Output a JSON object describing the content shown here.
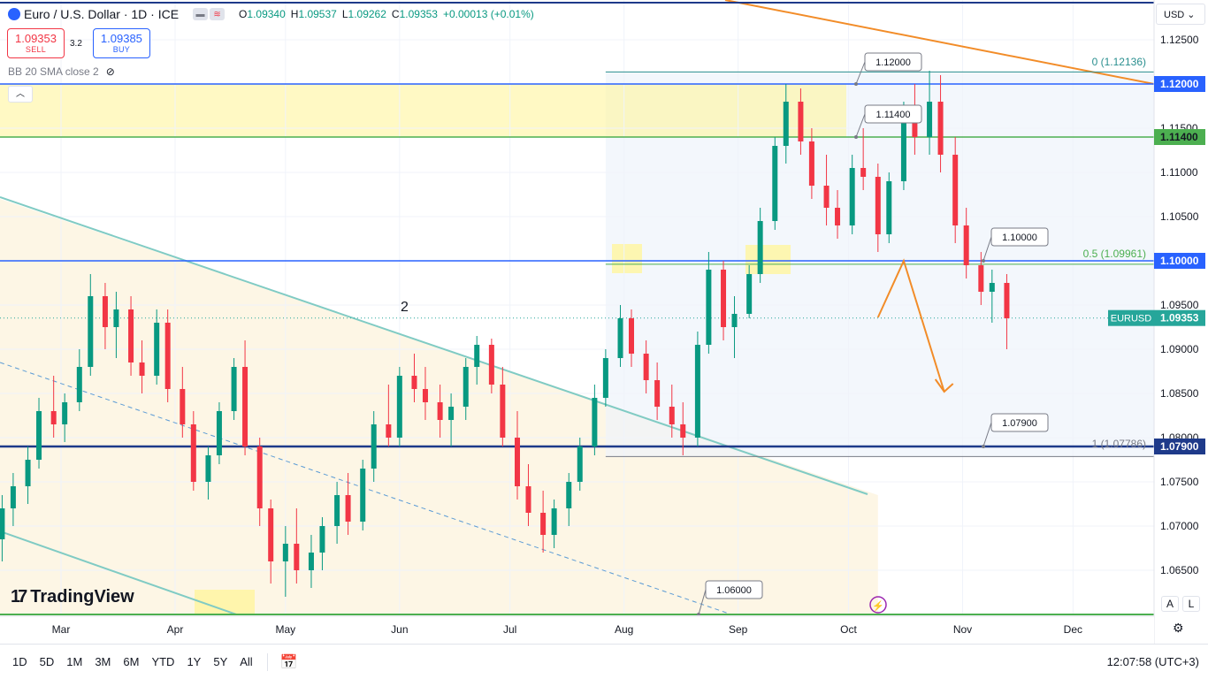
{
  "header": {
    "title": "Euro / U.S. Dollar · 1D · ICE",
    "ohlc": {
      "o_label": "O",
      "o": "1.09340",
      "h_label": "H",
      "h": "1.09537",
      "l_label": "L",
      "l": "1.09262",
      "c_label": "C",
      "c": "1.09353",
      "change": "+0.00013 (+0.01%)"
    }
  },
  "trade": {
    "sell_price": "1.09353",
    "sell_label": "SELL",
    "spread": "3.2",
    "buy_price": "1.09385",
    "buy_label": "BUY"
  },
  "indicator": {
    "label": "BB 20 SMA close 2"
  },
  "currency": "USD",
  "logo": {
    "mark": "17",
    "text": "TradingView"
  },
  "scale_buttons": {
    "auto": "A",
    "log": "L"
  },
  "bottom": {
    "ranges": [
      "1D",
      "5D",
      "1M",
      "3M",
      "6M",
      "YTD",
      "1Y",
      "5Y",
      "All"
    ],
    "clock": "12:07:58 (UTC+3)"
  },
  "chart_data": {
    "type": "candlestick",
    "symbol": "EURUSD",
    "last_price": 1.09353,
    "y_ticks": [
      "1.12500",
      "1.12000",
      "1.11500",
      "1.11400",
      "1.11000",
      "1.10500",
      "1.10000",
      "1.09500",
      "1.09353",
      "1.09000",
      "1.08500",
      "1.08000",
      "1.07900",
      "1.07500",
      "1.07000",
      "1.06500"
    ],
    "x_ticks": [
      "Mar",
      "Apr",
      "May",
      "Jun",
      "Jul",
      "Aug",
      "Sep",
      "Oct",
      "Nov",
      "Dec"
    ],
    "horizontal_levels": [
      {
        "value": 1.12,
        "color": "#2962ff",
        "label": "1.12000"
      },
      {
        "value": 1.114,
        "color": "#4caf50",
        "label": "1.11400"
      },
      {
        "value": 1.1,
        "color": "#2962ff",
        "label": "1.10000"
      },
      {
        "value": 1.079,
        "color": "#1e3a8a",
        "label": "1.07900"
      },
      {
        "value": 1.06,
        "color": "#4caf50",
        "label": "1.06000"
      }
    ],
    "fib_levels": [
      {
        "label": "0 (1.12136)",
        "value": 1.12136
      },
      {
        "label": "0.5 (1.09961)",
        "value": 1.09961
      },
      {
        "label": "1 (1.07786)",
        "value": 1.07786
      }
    ],
    "wave_label": "2",
    "forecast_path": [
      {
        "date": "2023-10-09",
        "price": 1.0936
      },
      {
        "date": "2023-10-16",
        "price": 1.1
      },
      {
        "date": "2023-10-27",
        "price": 1.0852
      }
    ],
    "candles": [
      {
        "d": "2023-02-13",
        "o": 1.0685,
        "h": 1.0735,
        "l": 1.066,
        "c": 1.072
      },
      {
        "d": "2023-02-16",
        "o": 1.072,
        "h": 1.076,
        "l": 1.07,
        "c": 1.0745
      },
      {
        "d": "2023-02-20",
        "o": 1.0745,
        "h": 1.079,
        "l": 1.0725,
        "c": 1.0775
      },
      {
        "d": "2023-02-23",
        "o": 1.0775,
        "h": 1.0845,
        "l": 1.0765,
        "c": 1.083
      },
      {
        "d": "2023-02-27",
        "o": 1.083,
        "h": 1.087,
        "l": 1.08,
        "c": 1.0815
      },
      {
        "d": "2023-03-02",
        "o": 1.0815,
        "h": 1.085,
        "l": 1.0795,
        "c": 1.084
      },
      {
        "d": "2023-03-06",
        "o": 1.084,
        "h": 1.09,
        "l": 1.083,
        "c": 1.088
      },
      {
        "d": "2023-03-09",
        "o": 1.088,
        "h": 1.0985,
        "l": 1.087,
        "c": 1.096
      },
      {
        "d": "2023-03-13",
        "o": 1.096,
        "h": 1.0975,
        "l": 1.09,
        "c": 1.0925
      },
      {
        "d": "2023-03-16",
        "o": 1.0925,
        "h": 1.0965,
        "l": 1.089,
        "c": 1.0945
      },
      {
        "d": "2023-03-20",
        "o": 1.0945,
        "h": 1.096,
        "l": 1.087,
        "c": 1.0885
      },
      {
        "d": "2023-03-23",
        "o": 1.0885,
        "h": 1.091,
        "l": 1.085,
        "c": 1.087
      },
      {
        "d": "2023-03-27",
        "o": 1.087,
        "h": 1.0945,
        "l": 1.086,
        "c": 1.093
      },
      {
        "d": "2023-03-30",
        "o": 1.093,
        "h": 1.0945,
        "l": 1.084,
        "c": 1.0855
      },
      {
        "d": "2023-04-03",
        "o": 1.0855,
        "h": 1.088,
        "l": 1.08,
        "c": 1.0815
      },
      {
        "d": "2023-04-06",
        "o": 1.0815,
        "h": 1.083,
        "l": 1.074,
        "c": 1.075
      },
      {
        "d": "2023-04-10",
        "o": 1.075,
        "h": 1.079,
        "l": 1.073,
        "c": 1.078
      },
      {
        "d": "2023-04-13",
        "o": 1.078,
        "h": 1.084,
        "l": 1.077,
        "c": 1.083
      },
      {
        "d": "2023-04-17",
        "o": 1.083,
        "h": 1.089,
        "l": 1.082,
        "c": 1.088
      },
      {
        "d": "2023-04-20",
        "o": 1.088,
        "h": 1.091,
        "l": 1.078,
        "c": 1.079
      },
      {
        "d": "2023-04-24",
        "o": 1.079,
        "h": 1.08,
        "l": 1.07,
        "c": 1.072
      },
      {
        "d": "2023-04-27",
        "o": 1.072,
        "h": 1.073,
        "l": 1.0635,
        "c": 1.066
      },
      {
        "d": "2023-05-01",
        "o": 1.066,
        "h": 1.07,
        "l": 1.062,
        "c": 1.068
      },
      {
        "d": "2023-05-04",
        "o": 1.068,
        "h": 1.072,
        "l": 1.0635,
        "c": 1.065
      },
      {
        "d": "2023-05-08",
        "o": 1.065,
        "h": 1.069,
        "l": 1.063,
        "c": 1.067
      },
      {
        "d": "2023-05-11",
        "o": 1.067,
        "h": 1.071,
        "l": 1.065,
        "c": 1.07
      },
      {
        "d": "2023-05-15",
        "o": 1.07,
        "h": 1.075,
        "l": 1.068,
        "c": 1.0735
      },
      {
        "d": "2023-05-18",
        "o": 1.0735,
        "h": 1.076,
        "l": 1.069,
        "c": 1.0705
      },
      {
        "d": "2023-05-22",
        "o": 1.0705,
        "h": 1.0775,
        "l": 1.0695,
        "c": 1.0765
      },
      {
        "d": "2023-05-25",
        "o": 1.0765,
        "h": 1.083,
        "l": 1.075,
        "c": 1.0815
      },
      {
        "d": "2023-05-29",
        "o": 1.0815,
        "h": 1.086,
        "l": 1.079,
        "c": 1.08
      },
      {
        "d": "2023-06-01",
        "o": 1.08,
        "h": 1.088,
        "l": 1.079,
        "c": 1.087
      },
      {
        "d": "2023-06-05",
        "o": 1.087,
        "h": 1.0895,
        "l": 1.084,
        "c": 1.0855
      },
      {
        "d": "2023-06-08",
        "o": 1.0855,
        "h": 1.088,
        "l": 1.082,
        "c": 1.084
      },
      {
        "d": "2023-06-12",
        "o": 1.084,
        "h": 1.086,
        "l": 1.08,
        "c": 1.082
      },
      {
        "d": "2023-06-15",
        "o": 1.082,
        "h": 1.085,
        "l": 1.079,
        "c": 1.0835
      },
      {
        "d": "2023-06-19",
        "o": 1.0835,
        "h": 1.089,
        "l": 1.082,
        "c": 1.088
      },
      {
        "d": "2023-06-22",
        "o": 1.088,
        "h": 1.0915,
        "l": 1.086,
        "c": 1.0905
      },
      {
        "d": "2023-06-26",
        "o": 1.0905,
        "h": 1.0912,
        "l": 1.085,
        "c": 1.086
      },
      {
        "d": "2023-06-29",
        "o": 1.086,
        "h": 1.088,
        "l": 1.079,
        "c": 1.08
      },
      {
        "d": "2023-07-03",
        "o": 1.08,
        "h": 1.083,
        "l": 1.073,
        "c": 1.0745
      },
      {
        "d": "2023-07-06",
        "o": 1.0745,
        "h": 1.077,
        "l": 1.07,
        "c": 1.0715
      },
      {
        "d": "2023-07-10",
        "o": 1.0715,
        "h": 1.074,
        "l": 1.067,
        "c": 1.069
      },
      {
        "d": "2023-07-13",
        "o": 1.069,
        "h": 1.073,
        "l": 1.0675,
        "c": 1.072
      },
      {
        "d": "2023-07-17",
        "o": 1.072,
        "h": 1.076,
        "l": 1.07,
        "c": 1.075
      },
      {
        "d": "2023-07-20",
        "o": 1.075,
        "h": 1.08,
        "l": 1.074,
        "c": 1.079
      },
      {
        "d": "2023-07-24",
        "o": 1.079,
        "h": 1.086,
        "l": 1.078,
        "c": 1.0845
      },
      {
        "d": "2023-07-27",
        "o": 1.0845,
        "h": 1.09,
        "l": 1.0835,
        "c": 1.089
      },
      {
        "d": "2023-07-31",
        "o": 1.089,
        "h": 1.095,
        "l": 1.088,
        "c": 1.0935
      },
      {
        "d": "2023-08-03",
        "o": 1.0935,
        "h": 1.0945,
        "l": 1.088,
        "c": 1.0895
      },
      {
        "d": "2023-08-07",
        "o": 1.0895,
        "h": 1.091,
        "l": 1.085,
        "c": 1.0865
      },
      {
        "d": "2023-08-10",
        "o": 1.0865,
        "h": 1.0885,
        "l": 1.082,
        "c": 1.0835
      },
      {
        "d": "2023-08-14",
        "o": 1.0835,
        "h": 1.086,
        "l": 1.08,
        "c": 1.0815
      },
      {
        "d": "2023-08-17",
        "o": 1.0815,
        "h": 1.084,
        "l": 1.078,
        "c": 1.08
      },
      {
        "d": "2023-08-21",
        "o": 1.08,
        "h": 1.092,
        "l": 1.079,
        "c": 1.0905
      },
      {
        "d": "2023-08-24",
        "o": 1.0905,
        "h": 1.101,
        "l": 1.0895,
        "c": 1.099
      },
      {
        "d": "2023-08-28",
        "o": 1.099,
        "h": 1.1,
        "l": 1.091,
        "c": 1.0925
      },
      {
        "d": "2023-08-31",
        "o": 1.0925,
        "h": 1.096,
        "l": 1.089,
        "c": 1.094
      },
      {
        "d": "2023-09-04",
        "o": 1.094,
        "h": 1.0995,
        "l": 1.0935,
        "c": 1.0985
      },
      {
        "d": "2023-09-07",
        "o": 1.0985,
        "h": 1.106,
        "l": 1.0975,
        "c": 1.1045
      },
      {
        "d": "2023-09-11",
        "o": 1.1045,
        "h": 1.114,
        "l": 1.1035,
        "c": 1.113
      },
      {
        "d": "2023-09-14",
        "o": 1.113,
        "h": 1.12,
        "l": 1.111,
        "c": 1.118
      },
      {
        "d": "2023-09-18",
        "o": 1.118,
        "h": 1.1195,
        "l": 1.112,
        "c": 1.1135
      },
      {
        "d": "2023-09-21",
        "o": 1.1135,
        "h": 1.115,
        "l": 1.107,
        "c": 1.1085
      },
      {
        "d": "2023-09-25",
        "o": 1.1085,
        "h": 1.112,
        "l": 1.104,
        "c": 1.106
      },
      {
        "d": "2023-09-28",
        "o": 1.106,
        "h": 1.108,
        "l": 1.1025,
        "c": 1.104
      },
      {
        "d": "2023-10-02",
        "o": 1.104,
        "h": 1.112,
        "l": 1.103,
        "c": 1.1105
      },
      {
        "d": "2023-10-05",
        "o": 1.1105,
        "h": 1.115,
        "l": 1.108,
        "c": 1.1095
      },
      {
        "d": "2023-10-09",
        "o": 1.1095,
        "h": 1.111,
        "l": 1.101,
        "c": 1.103
      },
      {
        "d": "2023-10-12",
        "o": 1.103,
        "h": 1.11,
        "l": 1.102,
        "c": 1.109
      },
      {
        "d": "2023-10-16",
        "o": 1.109,
        "h": 1.118,
        "l": 1.108,
        "c": 1.116
      },
      {
        "d": "2023-10-19",
        "o": 1.116,
        "h": 1.12,
        "l": 1.112,
        "c": 1.114
      },
      {
        "d": "2023-10-23",
        "o": 1.114,
        "h": 1.1215,
        "l": 1.112,
        "c": 1.118
      },
      {
        "d": "2023-10-26",
        "o": 1.118,
        "h": 1.121,
        "l": 1.11,
        "c": 1.112
      },
      {
        "d": "2023-10-30",
        "o": 1.112,
        "h": 1.114,
        "l": 1.102,
        "c": 1.104
      },
      {
        "d": "2023-11-02",
        "o": 1.104,
        "h": 1.106,
        "l": 1.098,
        "c": 1.0995
      },
      {
        "d": "2023-11-06",
        "o": 1.0995,
        "h": 1.101,
        "l": 1.095,
        "c": 1.0965
      },
      {
        "d": "2023-11-09",
        "o": 1.0965,
        "h": 1.099,
        "l": 1.093,
        "c": 1.0975
      },
      {
        "d": "2023-11-13",
        "o": 1.0975,
        "h": 1.0985,
        "l": 1.09,
        "c": 1.0935
      }
    ]
  }
}
